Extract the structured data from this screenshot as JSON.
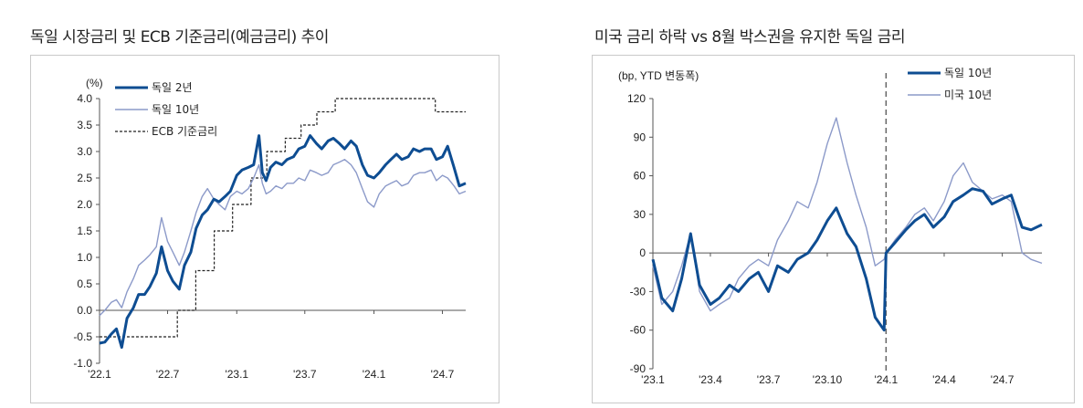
{
  "chart_data": [
    {
      "type": "line",
      "title": "독일 시장금리 및 ECB 기준금리(예금금리) 추이",
      "ylabel": "(%)",
      "ylim": [
        -1.0,
        4.0
      ],
      "yticks": [
        "-1.0",
        "-0.5",
        "0.0",
        "0.5",
        "1.0",
        "1.5",
        "2.0",
        "2.5",
        "3.0",
        "3.5",
        "4.0"
      ],
      "xticks": [
        "'22.1",
        "'22.7",
        "'23.1",
        "'23.7",
        "'24.1",
        "'24.7"
      ],
      "grid": false,
      "legend_position": "top-left",
      "colors": {
        "bund_2y": "#0e4d92",
        "bund_10y": "#8c9ac9",
        "ecb": "#222222"
      },
      "series": [
        {
          "name": "독일 2년",
          "style": "solid-thick",
          "x": [
            "2022-01-01",
            "2022-01-15",
            "2022-02-01",
            "2022-02-15",
            "2022-03-01",
            "2022-03-15",
            "2022-04-01",
            "2022-04-15",
            "2022-05-01",
            "2022-05-15",
            "2022-06-01",
            "2022-06-15",
            "2022-07-01",
            "2022-07-15",
            "2022-08-01",
            "2022-08-15",
            "2022-09-01",
            "2022-09-15",
            "2022-10-01",
            "2022-10-15",
            "2022-11-01",
            "2022-11-15",
            "2022-12-01",
            "2022-12-15",
            "2023-01-01",
            "2023-01-15",
            "2023-02-01",
            "2023-02-15",
            "2023-03-01",
            "2023-03-10",
            "2023-03-20",
            "2023-04-01",
            "2023-04-15",
            "2023-05-01",
            "2023-05-15",
            "2023-06-01",
            "2023-06-15",
            "2023-07-01",
            "2023-07-15",
            "2023-08-01",
            "2023-08-15",
            "2023-09-01",
            "2023-09-15",
            "2023-10-01",
            "2023-10-15",
            "2023-11-01",
            "2023-11-15",
            "2023-12-01",
            "2023-12-15",
            "2024-01-01",
            "2024-01-15",
            "2024-02-01",
            "2024-02-15",
            "2024-03-01",
            "2024-03-15",
            "2024-04-01",
            "2024-04-15",
            "2024-05-01",
            "2024-05-15",
            "2024-06-01",
            "2024-06-15",
            "2024-07-01",
            "2024-07-15",
            "2024-08-01",
            "2024-08-15",
            "2024-09-01"
          ],
          "values": [
            -0.62,
            -0.6,
            -0.45,
            -0.35,
            -0.7,
            -0.15,
            0.05,
            0.3,
            0.3,
            0.45,
            0.7,
            1.2,
            0.75,
            0.55,
            0.4,
            0.85,
            1.1,
            1.55,
            1.8,
            1.9,
            2.1,
            2.05,
            2.15,
            2.25,
            2.55,
            2.65,
            2.7,
            2.75,
            3.3,
            2.6,
            2.45,
            2.7,
            2.8,
            2.75,
            2.85,
            2.9,
            3.05,
            3.1,
            3.3,
            3.15,
            3.05,
            3.2,
            3.25,
            3.15,
            3.05,
            3.2,
            3.1,
            2.75,
            2.55,
            2.5,
            2.6,
            2.75,
            2.85,
            2.95,
            2.85,
            2.9,
            3.05,
            3.0,
            3.05,
            3.05,
            2.85,
            2.9,
            3.1,
            2.7,
            2.35,
            2.4
          ]
        },
        {
          "name": "독일 10년",
          "style": "solid-thin",
          "x": [
            "2022-01-01",
            "2022-01-15",
            "2022-02-01",
            "2022-02-15",
            "2022-03-01",
            "2022-03-15",
            "2022-04-01",
            "2022-04-15",
            "2022-05-01",
            "2022-05-15",
            "2022-06-01",
            "2022-06-15",
            "2022-07-01",
            "2022-07-15",
            "2022-08-01",
            "2022-08-15",
            "2022-09-01",
            "2022-09-15",
            "2022-10-01",
            "2022-10-15",
            "2022-11-01",
            "2022-11-15",
            "2022-12-01",
            "2022-12-15",
            "2023-01-01",
            "2023-01-15",
            "2023-02-01",
            "2023-02-15",
            "2023-03-01",
            "2023-03-10",
            "2023-03-20",
            "2023-04-01",
            "2023-04-15",
            "2023-05-01",
            "2023-05-15",
            "2023-06-01",
            "2023-06-15",
            "2023-07-01",
            "2023-07-15",
            "2023-08-01",
            "2023-08-15",
            "2023-09-01",
            "2023-09-15",
            "2023-10-01",
            "2023-10-15",
            "2023-11-01",
            "2023-11-15",
            "2023-12-01",
            "2023-12-15",
            "2024-01-01",
            "2024-01-15",
            "2024-02-01",
            "2024-02-15",
            "2024-03-01",
            "2024-03-15",
            "2024-04-01",
            "2024-04-15",
            "2024-05-01",
            "2024-05-15",
            "2024-06-01",
            "2024-06-15",
            "2024-07-01",
            "2024-07-15",
            "2024-08-01",
            "2024-08-15",
            "2024-09-01"
          ],
          "values": [
            -0.1,
            0.0,
            0.15,
            0.2,
            0.05,
            0.35,
            0.6,
            0.85,
            0.95,
            1.05,
            1.2,
            1.75,
            1.3,
            1.1,
            0.85,
            1.1,
            1.5,
            1.85,
            2.15,
            2.3,
            2.1,
            2.0,
            1.9,
            2.15,
            2.25,
            2.2,
            2.3,
            2.5,
            2.75,
            2.4,
            2.2,
            2.25,
            2.35,
            2.3,
            2.4,
            2.4,
            2.5,
            2.45,
            2.65,
            2.6,
            2.55,
            2.6,
            2.75,
            2.8,
            2.85,
            2.75,
            2.6,
            2.3,
            2.05,
            1.95,
            2.2,
            2.35,
            2.4,
            2.45,
            2.35,
            2.4,
            2.55,
            2.6,
            2.6,
            2.65,
            2.45,
            2.55,
            2.5,
            2.35,
            2.2,
            2.25
          ]
        },
        {
          "name": "ECB 기준금리",
          "style": "dashed",
          "x": [
            "2022-01-01",
            "2022-07-27",
            "2022-07-27",
            "2022-09-14",
            "2022-09-14",
            "2022-11-02",
            "2022-11-02",
            "2022-12-21",
            "2022-12-21",
            "2023-02-08",
            "2023-02-08",
            "2023-03-22",
            "2023-03-22",
            "2023-05-10",
            "2023-05-10",
            "2023-06-21",
            "2023-06-21",
            "2023-08-02",
            "2023-08-02",
            "2023-09-20",
            "2023-09-20",
            "2024-06-12",
            "2024-06-12",
            "2024-09-01"
          ],
          "values": [
            -0.5,
            -0.5,
            0.0,
            0.0,
            0.75,
            0.75,
            1.5,
            1.5,
            2.0,
            2.0,
            2.5,
            2.5,
            3.0,
            3.0,
            3.25,
            3.25,
            3.5,
            3.5,
            3.75,
            3.75,
            4.0,
            4.0,
            3.75,
            3.75
          ]
        }
      ]
    },
    {
      "type": "line",
      "title": "미국 금리 하락 vs 8월 박스권을 유지한 독일 금리",
      "ylabel": "(bp, YTD 변동폭)",
      "ylim": [
        -90,
        120
      ],
      "yticks": [
        "-90",
        "-60",
        "-30",
        "0",
        "30",
        "60",
        "90",
        "120"
      ],
      "xticks": [
        "'23.1",
        "'23.4",
        "'23.7",
        "'23.10",
        "'24.1",
        "'24.4",
        "'24.7"
      ],
      "grid": false,
      "legend_position": "top-right",
      "reference_line": {
        "x": "2024-01-01",
        "style": "dashed"
      },
      "colors": {
        "bund_10y": "#0e4d92",
        "ust_10y": "#8c9ac9"
      },
      "series": [
        {
          "name": "독일 10년",
          "style": "solid-thick",
          "x": [
            "2023-01-01",
            "2023-01-15",
            "2023-02-01",
            "2023-02-15",
            "2023-03-01",
            "2023-03-15",
            "2023-04-01",
            "2023-04-15",
            "2023-05-01",
            "2023-05-15",
            "2023-06-01",
            "2023-06-15",
            "2023-07-01",
            "2023-07-15",
            "2023-08-01",
            "2023-08-15",
            "2023-09-01",
            "2023-09-15",
            "2023-10-01",
            "2023-10-15",
            "2023-11-01",
            "2023-11-15",
            "2023-12-01",
            "2023-12-15",
            "2023-12-29",
            "2024-01-01",
            "2024-01-15",
            "2024-02-01",
            "2024-02-15",
            "2024-03-01",
            "2024-03-15",
            "2024-04-01",
            "2024-04-15",
            "2024-05-01",
            "2024-05-15",
            "2024-06-01",
            "2024-06-15",
            "2024-07-01",
            "2024-07-15",
            "2024-08-01",
            "2024-08-15",
            "2024-09-01"
          ],
          "values": [
            -5,
            -35,
            -45,
            -20,
            15,
            -25,
            -40,
            -35,
            -25,
            -30,
            -20,
            -15,
            -30,
            -10,
            -15,
            -5,
            0,
            10,
            25,
            35,
            15,
            5,
            -20,
            -50,
            -60,
            0,
            8,
            18,
            25,
            30,
            20,
            28,
            40,
            45,
            50,
            48,
            38,
            42,
            45,
            20,
            18,
            22
          ]
        },
        {
          "name": "미국 10년",
          "style": "solid-thin",
          "x": [
            "2023-01-01",
            "2023-01-15",
            "2023-02-01",
            "2023-02-15",
            "2023-03-01",
            "2023-03-15",
            "2023-04-01",
            "2023-04-15",
            "2023-05-01",
            "2023-05-15",
            "2023-06-01",
            "2023-06-15",
            "2023-07-01",
            "2023-07-15",
            "2023-08-01",
            "2023-08-15",
            "2023-09-01",
            "2023-09-15",
            "2023-10-01",
            "2023-10-15",
            "2023-11-01",
            "2023-11-15",
            "2023-12-01",
            "2023-12-15",
            "2023-12-29",
            "2024-01-01",
            "2024-01-15",
            "2024-02-01",
            "2024-02-15",
            "2024-03-01",
            "2024-03-15",
            "2024-04-01",
            "2024-04-15",
            "2024-05-01",
            "2024-05-15",
            "2024-06-01",
            "2024-06-15",
            "2024-07-01",
            "2024-07-15",
            "2024-08-01",
            "2024-08-15",
            "2024-09-01"
          ],
          "values": [
            -10,
            -40,
            -30,
            -10,
            15,
            -30,
            -45,
            -40,
            -35,
            -20,
            -10,
            -5,
            -10,
            10,
            25,
            40,
            35,
            55,
            85,
            105,
            70,
            45,
            20,
            -10,
            -5,
            0,
            10,
            20,
            30,
            35,
            25,
            40,
            60,
            70,
            55,
            48,
            42,
            45,
            40,
            0,
            -5,
            -8
          ]
        }
      ]
    }
  ]
}
